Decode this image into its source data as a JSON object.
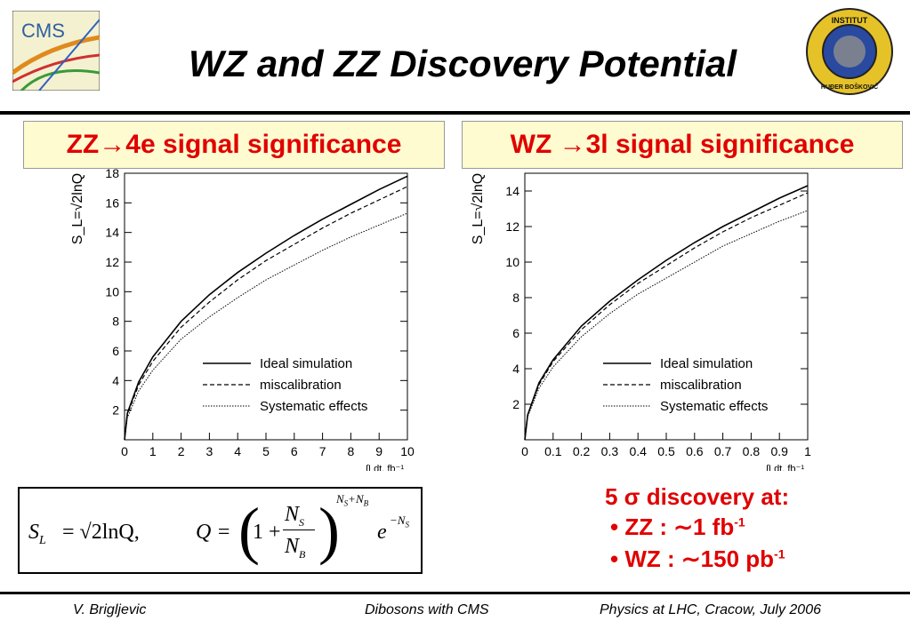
{
  "header": {
    "title": "WZ and ZZ Discovery Potential",
    "logo_left_text": "CMS",
    "logo_right_top": "INSTITUT",
    "logo_right_bottom": "RUĐER BOŠKOVIĆ"
  },
  "panels": {
    "left_heading": "ZZ→4e signal significance",
    "right_heading": "WZ →3l signal significance"
  },
  "formula": {
    "sl": "S",
    "sl_sub": "L",
    "eq": "= √2lnQ,",
    "q": "Q =",
    "frac_top": "N",
    "frac_top_sub": "S",
    "frac_bot": "N",
    "frac_bot_sub": "B",
    "one_plus": "1 +",
    "exp": "N",
    "exp_sub1": "S",
    "exp_plus": "+N",
    "exp_sub2": "B",
    "e": "e",
    "e_exp": "−N",
    "e_exp_sub": "S"
  },
  "discovery": {
    "heading": "5 σ discovery at:",
    "items": [
      {
        "bullet": "•",
        "label": "ZZ   : ∼1 fb",
        "sup": "-1"
      },
      {
        "bullet": "•",
        "label": "WZ  : ∼150 pb",
        "sup": "-1"
      }
    ]
  },
  "footer": {
    "author": "V. Brigljevic",
    "talk": "Dibosons with CMS",
    "conference": "Physics at LHC, Cracow, July 2006"
  },
  "chart_data": [
    {
      "type": "line",
      "title": "ZZ→4e signal significance",
      "ylabel": "S_L=√2lnQ",
      "xlabel": "∫Ldt, fb⁻¹",
      "xlim": [
        0,
        10
      ],
      "ylim": [
        0,
        18
      ],
      "xticks": [
        "0",
        "1",
        "2",
        "3",
        "4",
        "5",
        "6",
        "7",
        "8",
        "9",
        "10"
      ],
      "yticks": [
        "2",
        "4",
        "6",
        "8",
        "10",
        "12",
        "14",
        "16",
        "18"
      ],
      "legend_position": "bottom-right",
      "x": [
        0.1,
        0.5,
        1,
        2,
        3,
        4,
        5,
        6,
        7,
        8,
        9,
        10
      ],
      "series": [
        {
          "name": "Ideal simulation",
          "style": "solid",
          "values": [
            1.8,
            3.9,
            5.6,
            8.0,
            9.8,
            11.3,
            12.6,
            13.8,
            14.9,
            15.9,
            16.9,
            17.8
          ]
        },
        {
          "name": "miscalibration",
          "style": "dashed",
          "values": [
            1.7,
            3.7,
            5.3,
            7.6,
            9.3,
            10.8,
            12.1,
            13.2,
            14.3,
            15.3,
            16.2,
            17.1
          ]
        },
        {
          "name": "Systematic effects",
          "style": "dotted",
          "values": [
            1.5,
            3.3,
            4.7,
            6.8,
            8.3,
            9.6,
            10.8,
            11.8,
            12.8,
            13.7,
            14.5,
            15.3
          ]
        }
      ]
    },
    {
      "type": "line",
      "title": "WZ →3l signal significance",
      "ylabel": "S_L=√2lnQ",
      "xlabel": "∫Ldt, fb⁻¹",
      "xlim": [
        0,
        1
      ],
      "ylim": [
        0,
        15
      ],
      "xticks": [
        "0",
        "0.1",
        "0.2",
        "0.3",
        "0.4",
        "0.5",
        "0.6",
        "0.7",
        "0.8",
        "0.9",
        "1"
      ],
      "yticks": [
        "2",
        "4",
        "6",
        "8",
        "10",
        "12",
        "14"
      ],
      "legend_position": "bottom-right",
      "x": [
        0.01,
        0.05,
        0.1,
        0.2,
        0.3,
        0.4,
        0.5,
        0.6,
        0.7,
        0.8,
        0.9,
        1.0
      ],
      "series": [
        {
          "name": "Ideal simulation",
          "style": "solid",
          "values": [
            1.4,
            3.2,
            4.5,
            6.4,
            7.8,
            9.0,
            10.1,
            11.1,
            12.0,
            12.8,
            13.6,
            14.3
          ]
        },
        {
          "name": "miscalibration",
          "style": "dashed",
          "values": [
            1.4,
            3.1,
            4.4,
            6.2,
            7.6,
            8.8,
            9.8,
            10.8,
            11.7,
            12.5,
            13.2,
            13.9
          ]
        },
        {
          "name": "Systematic effects",
          "style": "dotted",
          "values": [
            1.3,
            2.9,
            4.1,
            5.8,
            7.1,
            8.2,
            9.1,
            10.0,
            10.9,
            11.6,
            12.3,
            12.9
          ]
        }
      ]
    }
  ]
}
